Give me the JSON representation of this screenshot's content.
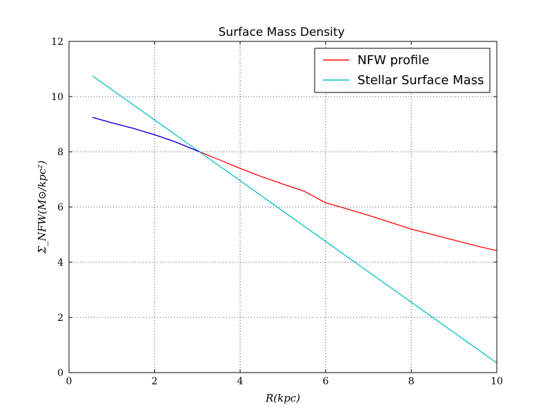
{
  "chart_data": {
    "type": "line",
    "title": "Surface Mass Density",
    "xlabel": "R(kpc)",
    "ylabel": "Σ_NFW(M⊙/kpc²)",
    "xlim": [
      0,
      10
    ],
    "ylim": [
      0,
      12
    ],
    "xticks": [
      "0",
      "2",
      "4",
      "6",
      "8",
      "10"
    ],
    "yticks": [
      "0",
      "2",
      "4",
      "6",
      "8",
      "10",
      "12"
    ],
    "grid": true,
    "legend_position": "top-right",
    "series": [
      {
        "name": "NFW profile",
        "color": "#ff0000",
        "x": [
          0.55,
          1.0,
          1.5,
          2.0,
          2.5,
          3.05,
          3.5,
          4.0,
          4.5,
          5.0,
          5.5,
          6.0,
          6.5,
          7.0,
          7.5,
          8.0,
          8.5,
          9.0,
          9.5,
          10.0
        ],
        "y": [
          9.25,
          9.05,
          8.85,
          8.62,
          8.35,
          8.0,
          7.72,
          7.4,
          7.1,
          6.83,
          6.57,
          6.15,
          5.93,
          5.7,
          5.45,
          5.2,
          5.0,
          4.8,
          4.6,
          4.42
        ]
      },
      {
        "name": "Stellar Surface Mass",
        "color": "#00bfbf",
        "x": [
          0.55,
          10.0
        ],
        "y": [
          10.75,
          0.35
        ]
      }
    ],
    "inner_segment": {
      "color": "#0000ff",
      "x": [
        0.55,
        1.0,
        1.5,
        2.0,
        2.5,
        3.05
      ],
      "y": [
        9.25,
        9.05,
        8.85,
        8.62,
        8.35,
        8.0
      ]
    }
  }
}
